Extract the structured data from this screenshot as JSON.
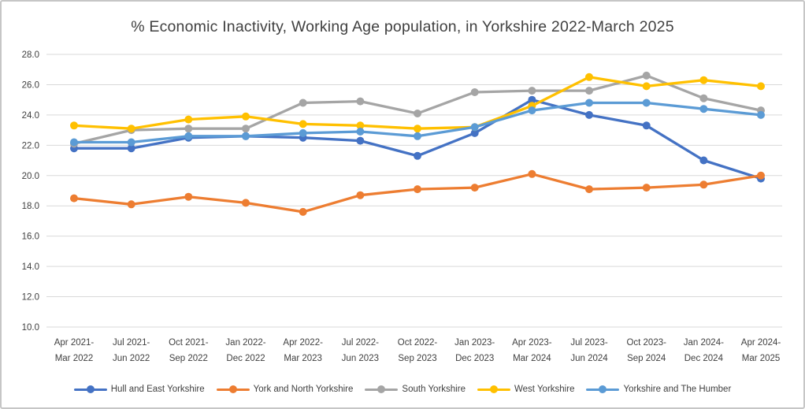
{
  "colors": {
    "background": "#ffffff",
    "frame_border": "#c6c6c6",
    "gridline": "#d9d9d9",
    "text": "#404040"
  },
  "chart_data": {
    "type": "line",
    "title": "% Economic Inactivity, Working Age population, in Yorkshire 2022-March 2025",
    "xlabel": "",
    "ylabel": "",
    "ylim": [
      10.0,
      28.0
    ],
    "y_tick_step": 2.0,
    "y_tick_labels": [
      "28.0",
      "26.0",
      "24.0",
      "22.0",
      "20.0",
      "18.0",
      "16.0",
      "14.0",
      "12.0",
      "10.0"
    ],
    "grid": true,
    "legend_position": "bottom",
    "marker_style": "circle",
    "categories": [
      [
        "Apr 2021-",
        "Mar 2022"
      ],
      [
        "Jul 2021-",
        "Jun 2022"
      ],
      [
        "Oct 2021-",
        "Sep 2022"
      ],
      [
        "Jan 2022-",
        "Dec 2022"
      ],
      [
        "Apr 2022-",
        "Mar 2023"
      ],
      [
        "Jul 2022-",
        "Jun 2023"
      ],
      [
        "Oct 2022-",
        "Sep 2023"
      ],
      [
        "Jan 2023-",
        "Dec 2023"
      ],
      [
        "Apr 2023-",
        "Mar 2024"
      ],
      [
        "Jul 2023-",
        "Jun 2024"
      ],
      [
        "Oct 2023-",
        "Sep 2024"
      ],
      [
        "Jan 2024-",
        "Dec 2024"
      ],
      [
        "Apr 2024-",
        "Mar 2025"
      ]
    ],
    "series": [
      {
        "name": "Hull and East Yorkshire",
        "color": "#4472C4",
        "values": [
          21.8,
          21.8,
          22.5,
          22.6,
          22.5,
          22.3,
          21.3,
          22.8,
          25.0,
          24.0,
          23.3,
          21.0,
          19.8
        ]
      },
      {
        "name": "York and North Yorkshire",
        "color": "#ED7D31",
        "values": [
          18.5,
          18.1,
          18.6,
          18.2,
          17.6,
          18.7,
          19.1,
          19.2,
          20.1,
          19.1,
          19.2,
          19.4,
          20.0
        ]
      },
      {
        "name": "South Yorkshire",
        "color": "#A5A5A5",
        "values": [
          22.1,
          23.0,
          23.1,
          23.1,
          24.8,
          24.9,
          24.1,
          25.5,
          25.6,
          25.6,
          26.6,
          25.1,
          24.3
        ]
      },
      {
        "name": "West Yorkshire",
        "color": "#FFC000",
        "values": [
          23.3,
          23.1,
          23.7,
          23.9,
          23.4,
          23.3,
          23.1,
          23.2,
          24.6,
          26.5,
          25.9,
          26.3,
          25.9
        ]
      },
      {
        "name": "Yorkshire and The Humber",
        "color": "#5B9BD5",
        "values": [
          22.2,
          22.2,
          22.6,
          22.6,
          22.8,
          22.9,
          22.6,
          23.2,
          24.3,
          24.8,
          24.8,
          24.4,
          24.0
        ]
      }
    ]
  }
}
